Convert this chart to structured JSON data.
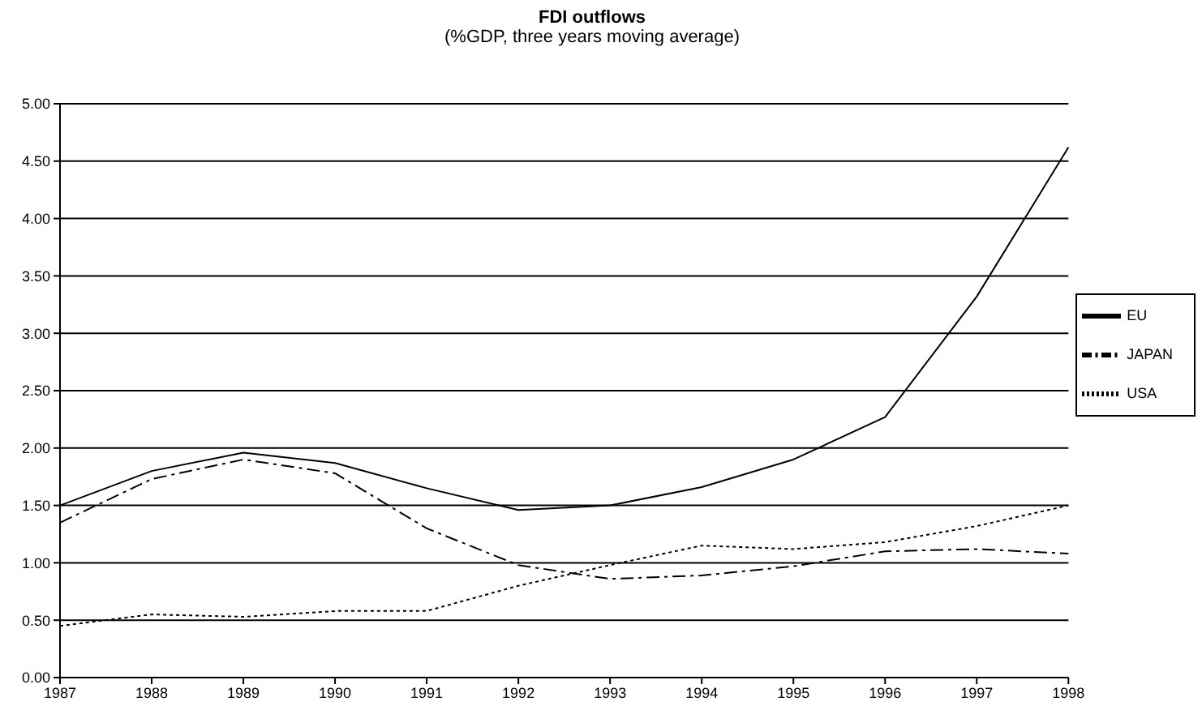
{
  "chart_data": {
    "type": "line",
    "title": "FDI outflows",
    "subtitle": "(%GDP, three years moving average)",
    "categories": [
      "1987",
      "1988",
      "1989",
      "1990",
      "1991",
      "1992",
      "1993",
      "1994",
      "1995",
      "1996",
      "1997",
      "1998"
    ],
    "series": [
      {
        "name": "USA",
        "color": "#000000",
        "line_style": "dotted",
        "values": [
          0.45,
          0.55,
          0.53,
          0.58,
          0.58,
          0.8,
          0.98,
          1.15,
          1.12,
          1.18,
          1.32,
          1.5
        ]
      },
      {
        "name": "EU",
        "color": "#000000",
        "line_style": "solid",
        "values": [
          1.5,
          1.8,
          1.96,
          1.87,
          1.65,
          1.46,
          1.5,
          1.66,
          1.9,
          2.27,
          3.32,
          4.62
        ]
      },
      {
        "name": "JAPAN",
        "color": "#000000",
        "line_style": "dashed",
        "values": [
          1.35,
          1.73,
          1.9,
          1.78,
          1.3,
          0.98,
          0.86,
          0.89,
          0.97,
          1.1,
          1.12,
          1.08
        ]
      }
    ],
    "ylim": [
      0,
      5
    ],
    "yticks": [
      {
        "value": 0,
        "label": "0.00"
      },
      {
        "value": 0.5,
        "label": "0.50"
      },
      {
        "value": 1,
        "label": "1.00"
      },
      {
        "value": 1.5,
        "label": "1.50"
      },
      {
        "value": 2,
        "label": "2.00"
      },
      {
        "value": 2.5,
        "label": "2.50"
      },
      {
        "value": 3,
        "label": "3.00"
      },
      {
        "value": 3.5,
        "label": "3.50"
      },
      {
        "value": 4,
        "label": "4.00"
      },
      {
        "value": 4.5,
        "label": "4.50"
      },
      {
        "value": 5,
        "label": "5.00"
      }
    ],
    "grid": "y",
    "legend": "right",
    "marker": "none"
  }
}
